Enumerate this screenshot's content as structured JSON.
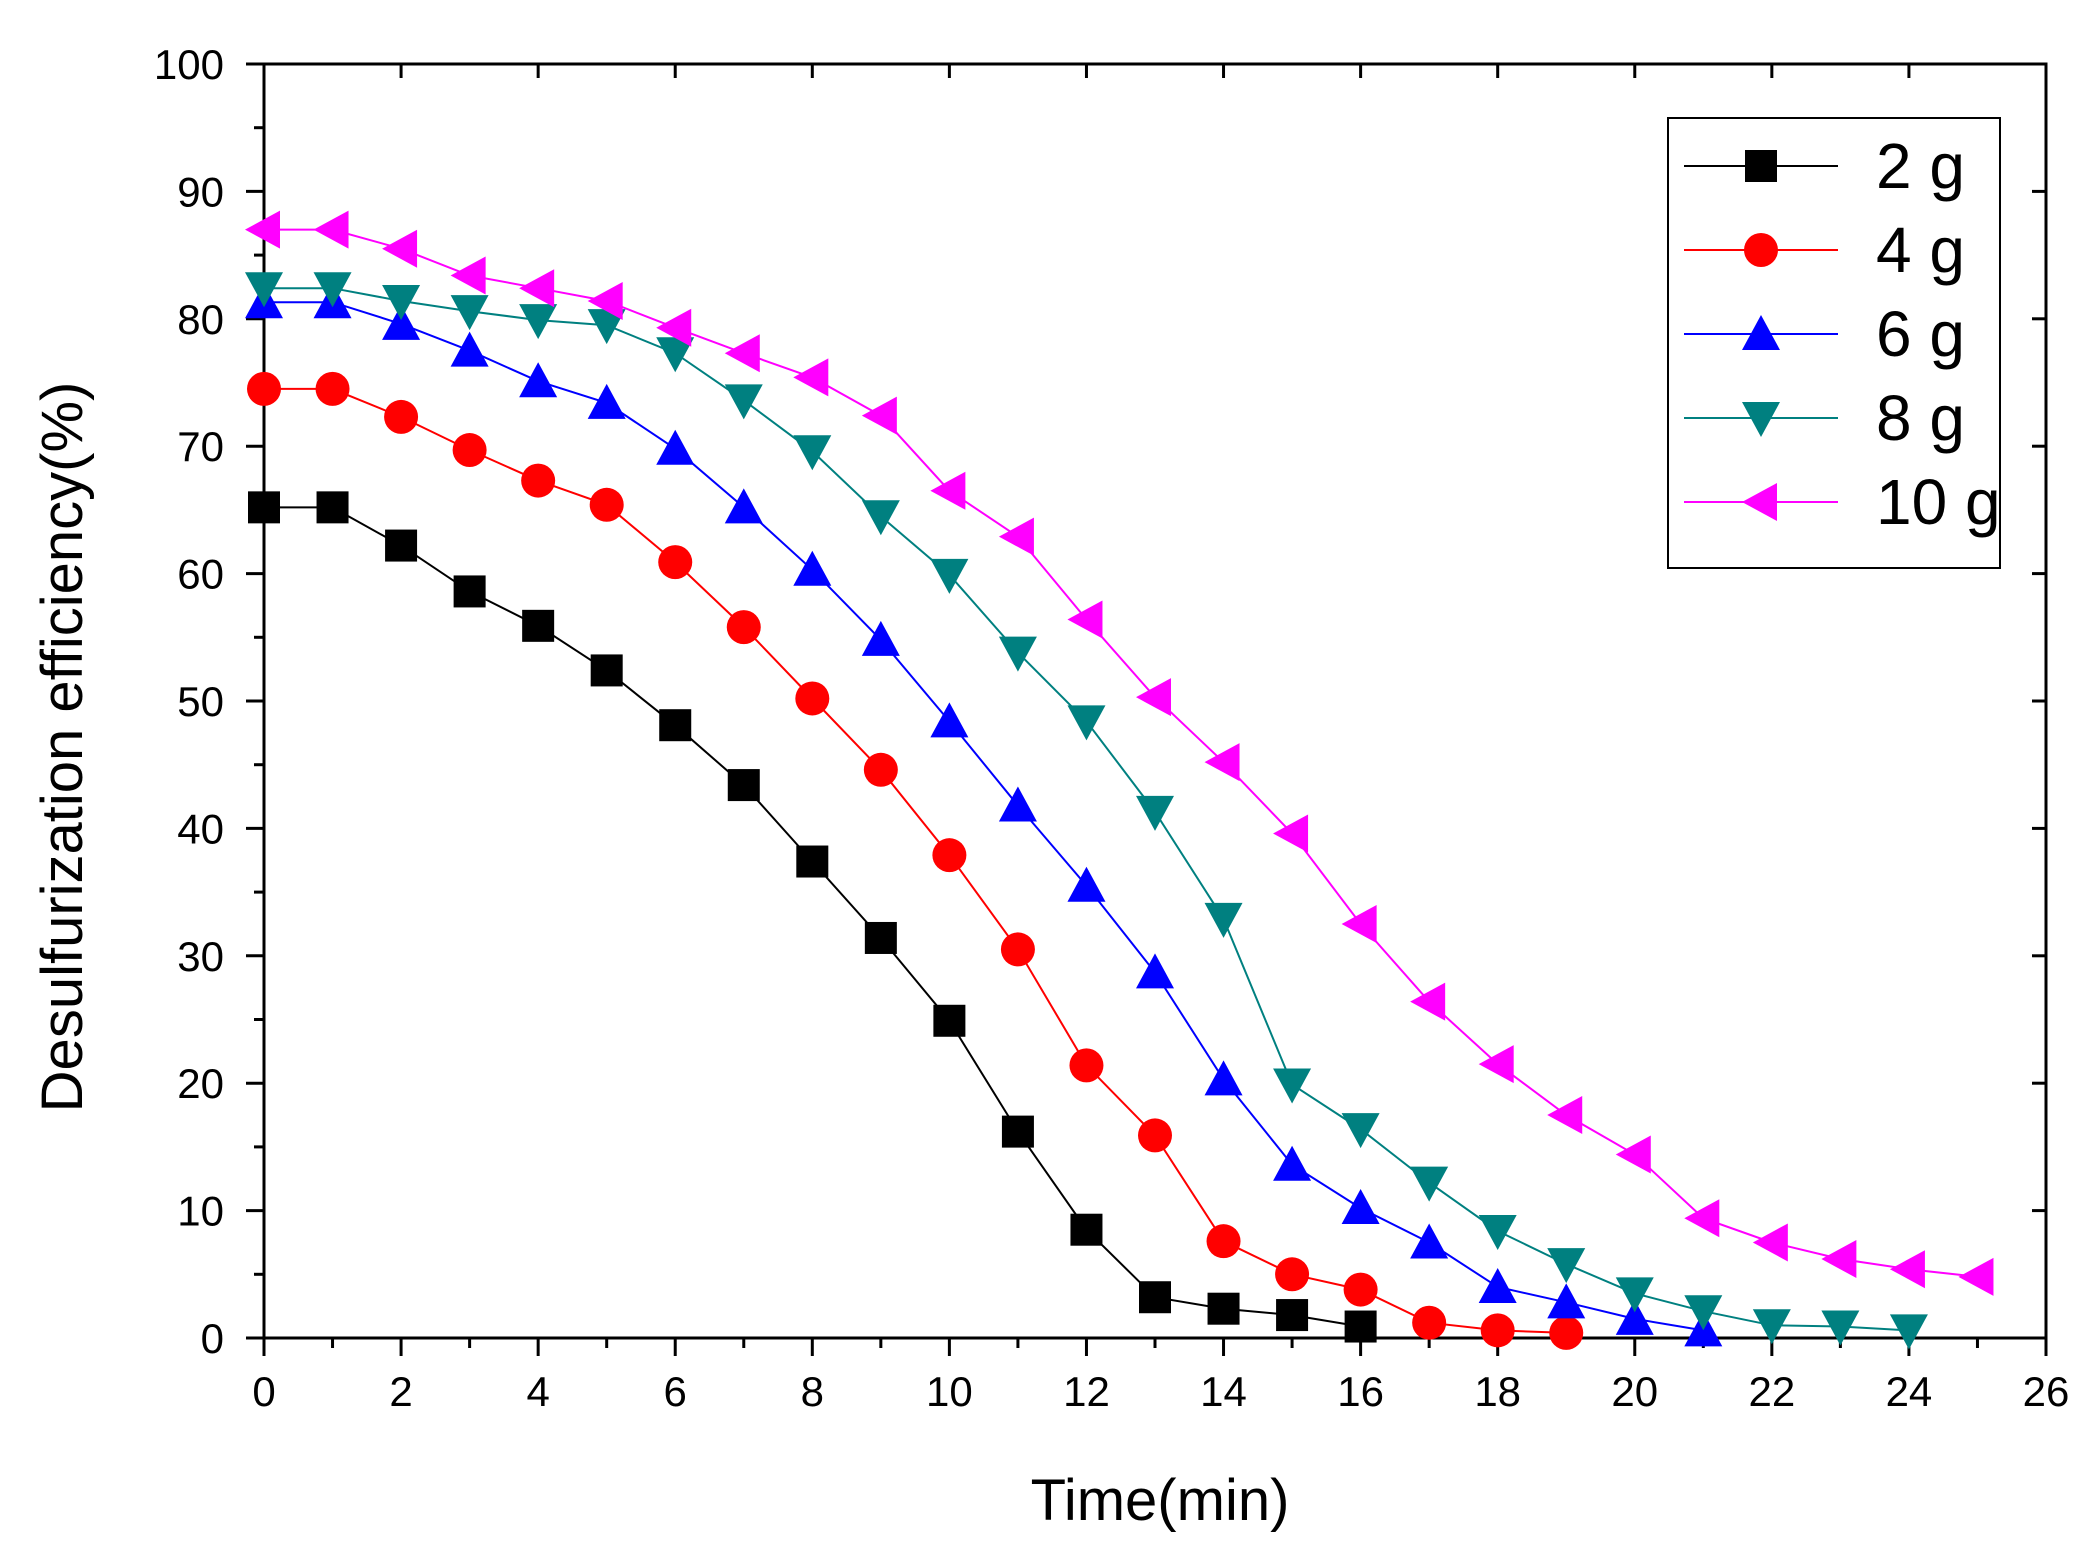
{
  "chart_data": {
    "type": "line",
    "title": "",
    "xlabel": "Time(min)",
    "ylabel": "Desulfurization efficiency(%)",
    "xlim": [
      0,
      26
    ],
    "ylim": [
      0,
      100
    ],
    "xticks": [
      0,
      2,
      4,
      6,
      8,
      10,
      12,
      14,
      16,
      18,
      20,
      22,
      24,
      26
    ],
    "yticks": [
      0,
      10,
      20,
      30,
      40,
      50,
      60,
      70,
      80,
      90,
      100
    ],
    "grid": false,
    "legend_position": "top-right",
    "series": [
      {
        "name": "2 g",
        "color": "#000000",
        "marker": "square",
        "x": [
          0,
          1,
          2,
          3,
          4,
          5,
          6,
          7,
          8,
          9,
          10,
          11,
          12,
          13,
          14,
          15,
          16
        ],
        "values": [
          65.2,
          65.2,
          62.2,
          58.6,
          55.9,
          52.4,
          48.1,
          43.4,
          37.4,
          31.4,
          24.9,
          16.2,
          8.5,
          3.2,
          2.3,
          1.8,
          0.9
        ]
      },
      {
        "name": "4 g",
        "color": "#ff0000",
        "marker": "circle",
        "x": [
          0,
          1,
          2,
          3,
          4,
          5,
          6,
          7,
          8,
          9,
          10,
          11,
          12,
          13,
          14,
          15,
          16,
          17,
          18,
          19
        ],
        "values": [
          74.5,
          74.5,
          72.3,
          69.7,
          67.3,
          65.4,
          60.9,
          55.8,
          50.2,
          44.6,
          37.9,
          30.5,
          21.4,
          15.9,
          7.6,
          5.0,
          3.8,
          1.2,
          0.6,
          0.4
        ]
      },
      {
        "name": "6 g",
        "color": "#0000ff",
        "marker": "triangle-up",
        "x": [
          0,
          1,
          2,
          3,
          4,
          5,
          6,
          7,
          8,
          9,
          10,
          11,
          12,
          13,
          14,
          15,
          16,
          17,
          18,
          19,
          20,
          21
        ],
        "values": [
          81.3,
          81.3,
          79.6,
          77.5,
          75.1,
          73.4,
          69.8,
          65.2,
          60.3,
          54.8,
          48.4,
          41.8,
          35.5,
          28.7,
          20.3,
          13.6,
          10.2,
          7.5,
          4.0,
          2.8,
          1.5,
          0.6
        ]
      },
      {
        "name": "8 g",
        "color": "#008080",
        "marker": "triangle-down",
        "x": [
          0,
          1,
          2,
          3,
          4,
          5,
          6,
          7,
          8,
          9,
          10,
          11,
          12,
          13,
          14,
          15,
          16,
          17,
          18,
          19,
          20,
          21,
          22,
          23,
          24
        ],
        "values": [
          82.4,
          82.4,
          81.4,
          80.6,
          79.9,
          79.5,
          77.3,
          73.6,
          69.6,
          64.5,
          59.9,
          53.8,
          48.4,
          41.3,
          32.9,
          19.9,
          16.4,
          12.2,
          8.4,
          5.8,
          3.5,
          2.1,
          1.0,
          0.9,
          0.6
        ]
      },
      {
        "name": "10 g",
        "color": "#ff00ff",
        "marker": "triangle-left",
        "x": [
          0,
          1,
          2,
          3,
          4,
          5,
          6,
          7,
          8,
          9,
          10,
          11,
          12,
          13,
          14,
          15,
          16,
          17,
          18,
          19,
          20,
          21,
          22,
          23,
          24,
          25
        ],
        "values": [
          87.0,
          87.0,
          85.5,
          83.4,
          82.4,
          81.4,
          79.3,
          77.3,
          75.4,
          72.4,
          66.5,
          62.9,
          56.4,
          50.3,
          45.2,
          39.6,
          32.5,
          26.4,
          21.5,
          17.5,
          14.4,
          9.4,
          7.5,
          6.2,
          5.4,
          4.8
        ]
      }
    ]
  }
}
